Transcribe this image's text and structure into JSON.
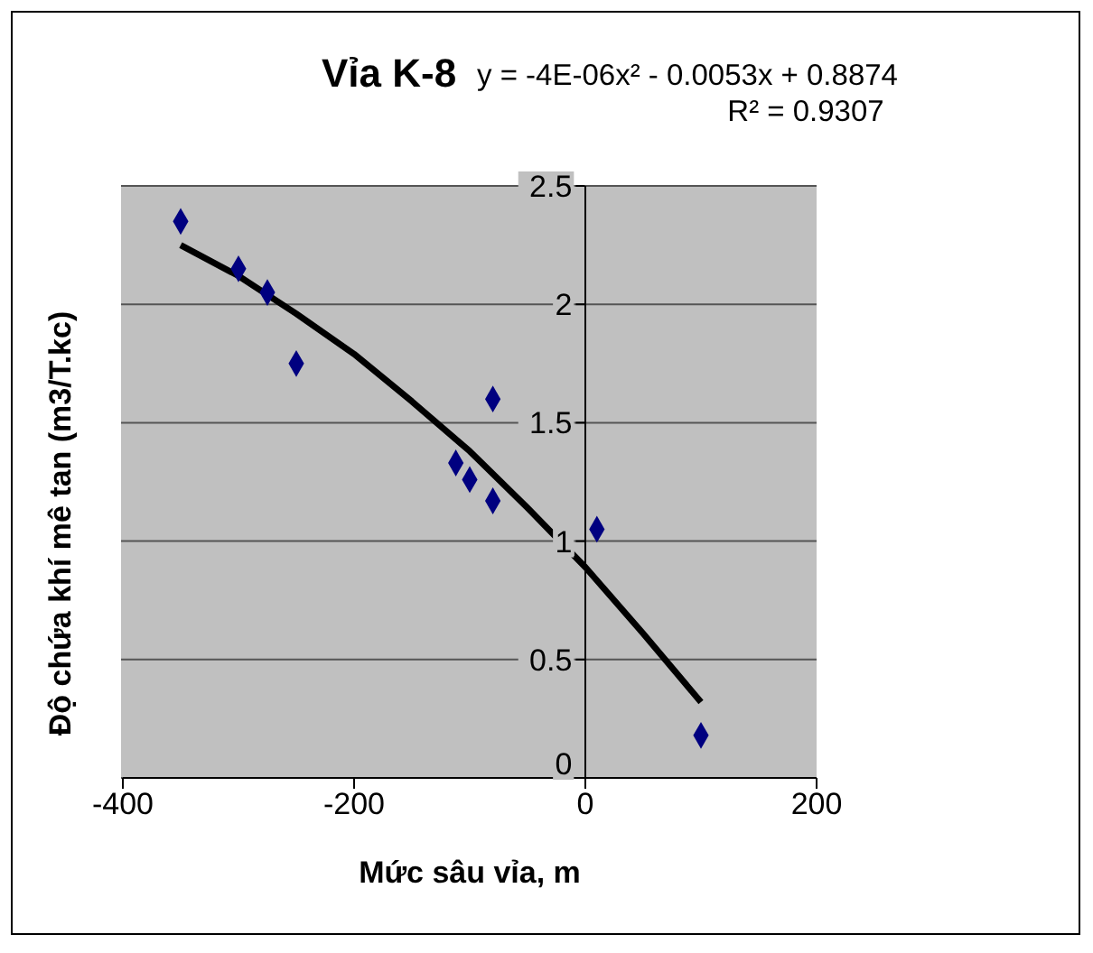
{
  "chart_data": {
    "type": "scatter",
    "title": "Vỉa K-8",
    "xlabel": "Mức sâu vỉa, m",
    "ylabel": "Độ chứa khí mê tan (m3/T.kc)",
    "annotations": [
      "y = -4E-06x² - 0.0053x + 0.8874",
      "R² = 0.9307"
    ],
    "series": [
      {
        "color": "#000080",
        "x": [
          -350,
          -300,
          -275,
          -250,
          -112,
          -100,
          -80,
          -80,
          10,
          100
        ],
        "values": [
          2.35,
          2.15,
          2.05,
          1.75,
          1.33,
          1.26,
          1.6,
          1.17,
          1.05,
          0.18
        ],
        "marker": "diamond"
      },
      {
        "type": "line",
        "color": "#000000",
        "x": [
          -350,
          -300,
          -250,
          -200,
          -150,
          -100,
          -50,
          0,
          50,
          100
        ],
        "values": [
          2.25,
          2.12,
          1.96,
          1.79,
          1.59,
          1.38,
          1.14,
          0.89,
          0.61,
          0.32
        ],
        "marker": "none",
        "line_style": "solid"
      }
    ],
    "xlim": [
      -400,
      200
    ],
    "xticks": [
      -400,
      -200,
      0,
      200
    ],
    "ylim": [
      0,
      2.5
    ],
    "yticks": [
      0,
      0.5,
      1,
      1.5,
      2,
      2.5
    ],
    "grid": "y"
  }
}
